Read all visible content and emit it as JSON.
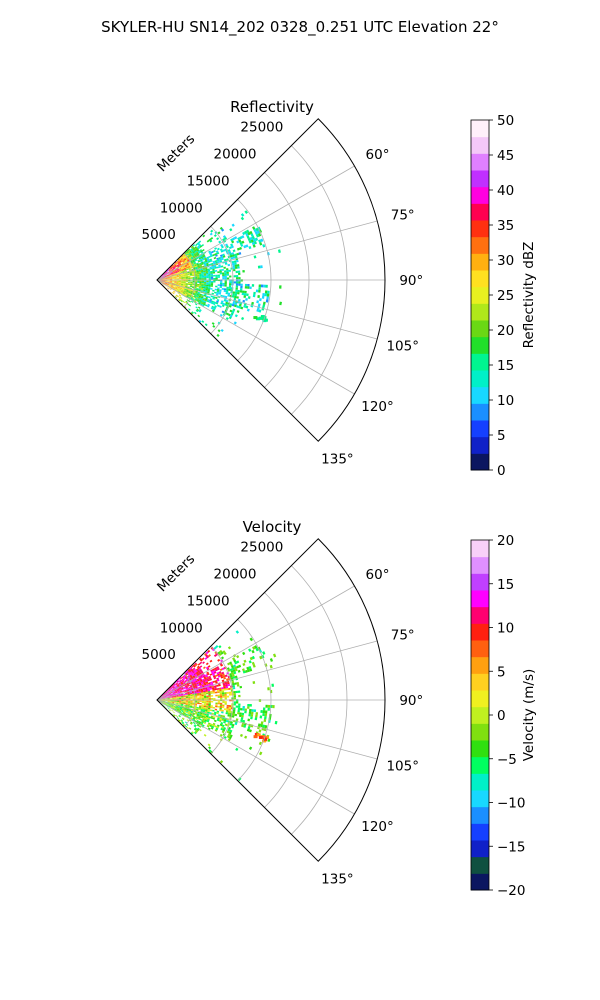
{
  "suptitle": "SKYLER-HU  SN14_202  0328_0.251 UTC Elevation 22°",
  "chart_data": [
    {
      "type": "heatmap",
      "subtype": "polar-sector (radar PPI)",
      "title": "Reflectivity",
      "range_label": "Meters",
      "range_ticks": [
        "5000",
        "10000",
        "15000",
        "20000",
        "25000"
      ],
      "range_tick_values": [
        5000,
        10000,
        15000,
        20000,
        25000
      ],
      "range_max": 30000,
      "azimuth_ticks": [
        "60°",
        "75°",
        "90°",
        "105°",
        "120°",
        "135°"
      ],
      "azimuth_tick_values": [
        60,
        75,
        90,
        105,
        120,
        135
      ],
      "azimuth_range_deg": [
        45,
        135
      ],
      "grid": true,
      "colorbar": {
        "label": "Reflectivity dBZ",
        "min": 0,
        "max": 50,
        "ticks": [
          "0",
          "5",
          "10",
          "15",
          "20",
          "25",
          "30",
          "35",
          "40",
          "45",
          "50"
        ],
        "tick_values": [
          0,
          5,
          10,
          15,
          20,
          25,
          30,
          35,
          40,
          45,
          50
        ],
        "colors": [
          "#0b1660",
          "#1021c8",
          "#1540ff",
          "#1a8fff",
          "#18d8ff",
          "#00f0c8",
          "#00f590",
          "#21e02a",
          "#6ad814",
          "#b0e81a",
          "#e8f020",
          "#ffe020",
          "#ffb010",
          "#ff7010",
          "#ff3010",
          "#ff0050",
          "#ff00e0",
          "#c030ff",
          "#e080ff",
          "#f4c8f8",
          "#fff0fa"
        ]
      }
    },
    {
      "type": "heatmap",
      "subtype": "polar-sector (radar PPI)",
      "title": "Velocity",
      "range_label": "Meters",
      "range_ticks": [
        "5000",
        "10000",
        "15000",
        "20000",
        "25000"
      ],
      "range_tick_values": [
        5000,
        10000,
        15000,
        20000,
        25000
      ],
      "range_max": 30000,
      "azimuth_ticks": [
        "60°",
        "75°",
        "90°",
        "105°",
        "120°",
        "135°"
      ],
      "azimuth_tick_values": [
        60,
        75,
        90,
        105,
        120,
        135
      ],
      "azimuth_range_deg": [
        45,
        135
      ],
      "grid": true,
      "colorbar": {
        "label": "Velocity (m/s)",
        "min": -20,
        "max": 20,
        "ticks": [
          "−20",
          "−15",
          "−10",
          "−5",
          "0",
          "5",
          "10",
          "15",
          "20"
        ],
        "tick_values": [
          -20,
          -15,
          -10,
          -5,
          0,
          5,
          10,
          15,
          20
        ],
        "colors": [
          "#0b1660",
          "#0f5040",
          "#1021c8",
          "#1540ff",
          "#1a8fff",
          "#18d8ff",
          "#00f0c8",
          "#00ff60",
          "#30e010",
          "#80e010",
          "#c0f020",
          "#f0f020",
          "#ffd020",
          "#ffa010",
          "#ff6010",
          "#ff2010",
          "#ff0070",
          "#ff00ff",
          "#c040ff",
          "#e090ff",
          "#f8d0f8"
        ]
      }
    }
  ]
}
